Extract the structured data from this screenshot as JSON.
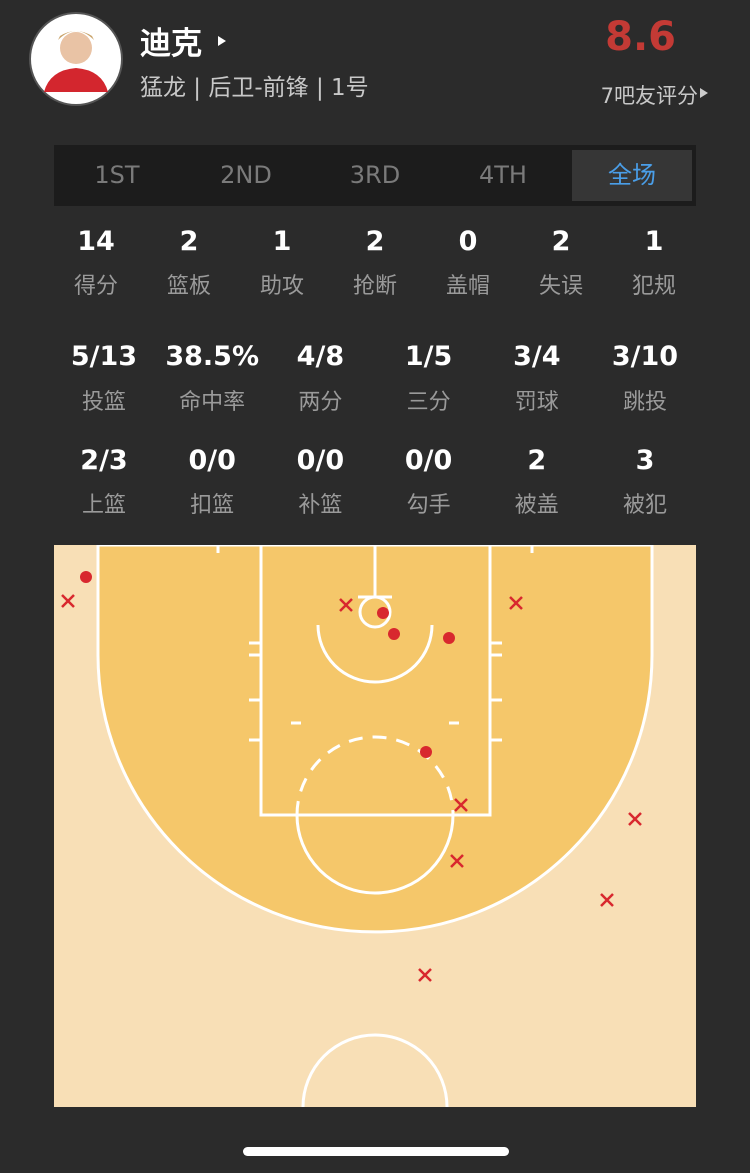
{
  "header": {
    "name": "迪克",
    "info": "猛龙 | 后卫-前锋 | 1号",
    "rating": 8.6,
    "rating_label": "7吧友评分"
  },
  "tabs": [
    "1ST",
    "2ND",
    "3RD",
    "4TH",
    "全场"
  ],
  "stats_main": [
    {
      "value": 14,
      "label": "得分"
    },
    {
      "value": 2,
      "label": "篮板"
    },
    {
      "value": 1,
      "label": "助攻"
    },
    {
      "value": 2,
      "label": "抢断"
    },
    {
      "value": 0,
      "label": "盖帽"
    },
    {
      "value": 2,
      "label": "失误"
    },
    {
      "value": 1,
      "label": "犯规"
    }
  ],
  "stats_shooting": [
    {
      "value": "5/13",
      "label": "投篮"
    },
    {
      "value": "38.5%",
      "label": "命中率"
    },
    {
      "value": "4/8",
      "label": "两分"
    },
    {
      "value": "1/5",
      "label": "三分"
    },
    {
      "value": "3/4",
      "label": "罚球"
    },
    {
      "value": "3/10",
      "label": "跳投"
    }
  ],
  "stats_detail": [
    {
      "value": "2/3",
      "label": "上篮"
    },
    {
      "value": "0/0",
      "label": "扣篮"
    },
    {
      "value": "0/0",
      "label": "补篮"
    },
    {
      "value": "0/0",
      "label": "勾手"
    },
    {
      "value": 2,
      "label": "被盖"
    },
    {
      "value": 3,
      "label": "被犯"
    }
  ]
}
